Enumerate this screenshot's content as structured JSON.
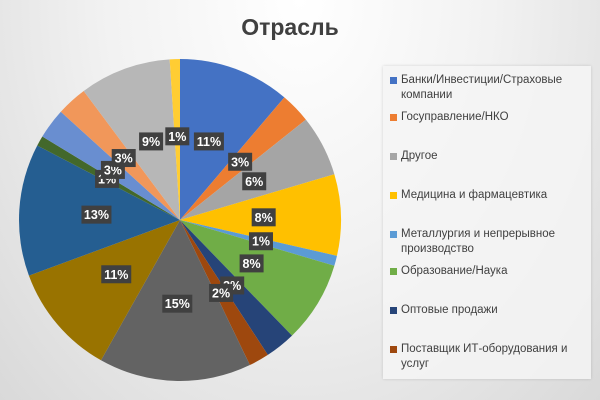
{
  "chart_data": {
    "type": "pie",
    "title": "Отрасль",
    "legend_position": "right",
    "slices": [
      {
        "name": "Банки/Инвестиции/Страховые компании",
        "value": 11,
        "label": "11%",
        "color": "#4472C4"
      },
      {
        "name": "Госуправление/НКО",
        "value": 3,
        "label": "3%",
        "color": "#ED7D31"
      },
      {
        "name": "Другое",
        "value": 6,
        "label": "6%",
        "color": "#A5A5A5"
      },
      {
        "name": "Медицина и фармацевтика",
        "value": 8,
        "label": "8%",
        "color": "#FFC000"
      },
      {
        "name": "Металлургия и непрерывное производство",
        "value": 1,
        "label": "1%",
        "color": "#5B9BD5"
      },
      {
        "name": "Образование/Наука",
        "value": 8,
        "label": "8%",
        "color": "#70AD47"
      },
      {
        "name": "Оптовые продажи",
        "value": 3,
        "label": "3%",
        "color": "#264478"
      },
      {
        "name": "Поставщик ИТ-оборудования и услуг",
        "value": 2,
        "label": "2%",
        "color": "#9E480E"
      },
      {
        "name": "",
        "value": 15,
        "label": "15%",
        "color": "#636363"
      },
      {
        "name": "",
        "value": 11,
        "label": "11%",
        "color": "#997300"
      },
      {
        "name": "",
        "value": 13,
        "label": "13%",
        "color": "#255E91"
      },
      {
        "name": "",
        "value": 1,
        "label": "1%",
        "color": "#43682B"
      },
      {
        "name": "",
        "value": 3,
        "label": "3%",
        "color": "#698ED0"
      },
      {
        "name": "",
        "value": 3,
        "label": "3%",
        "color": "#F1975A"
      },
      {
        "name": "",
        "value": 9,
        "label": "9%",
        "color": "#B7B7B7"
      },
      {
        "name": "",
        "value": 1,
        "label": "1%",
        "color": "#FFCD33"
      }
    ]
  }
}
